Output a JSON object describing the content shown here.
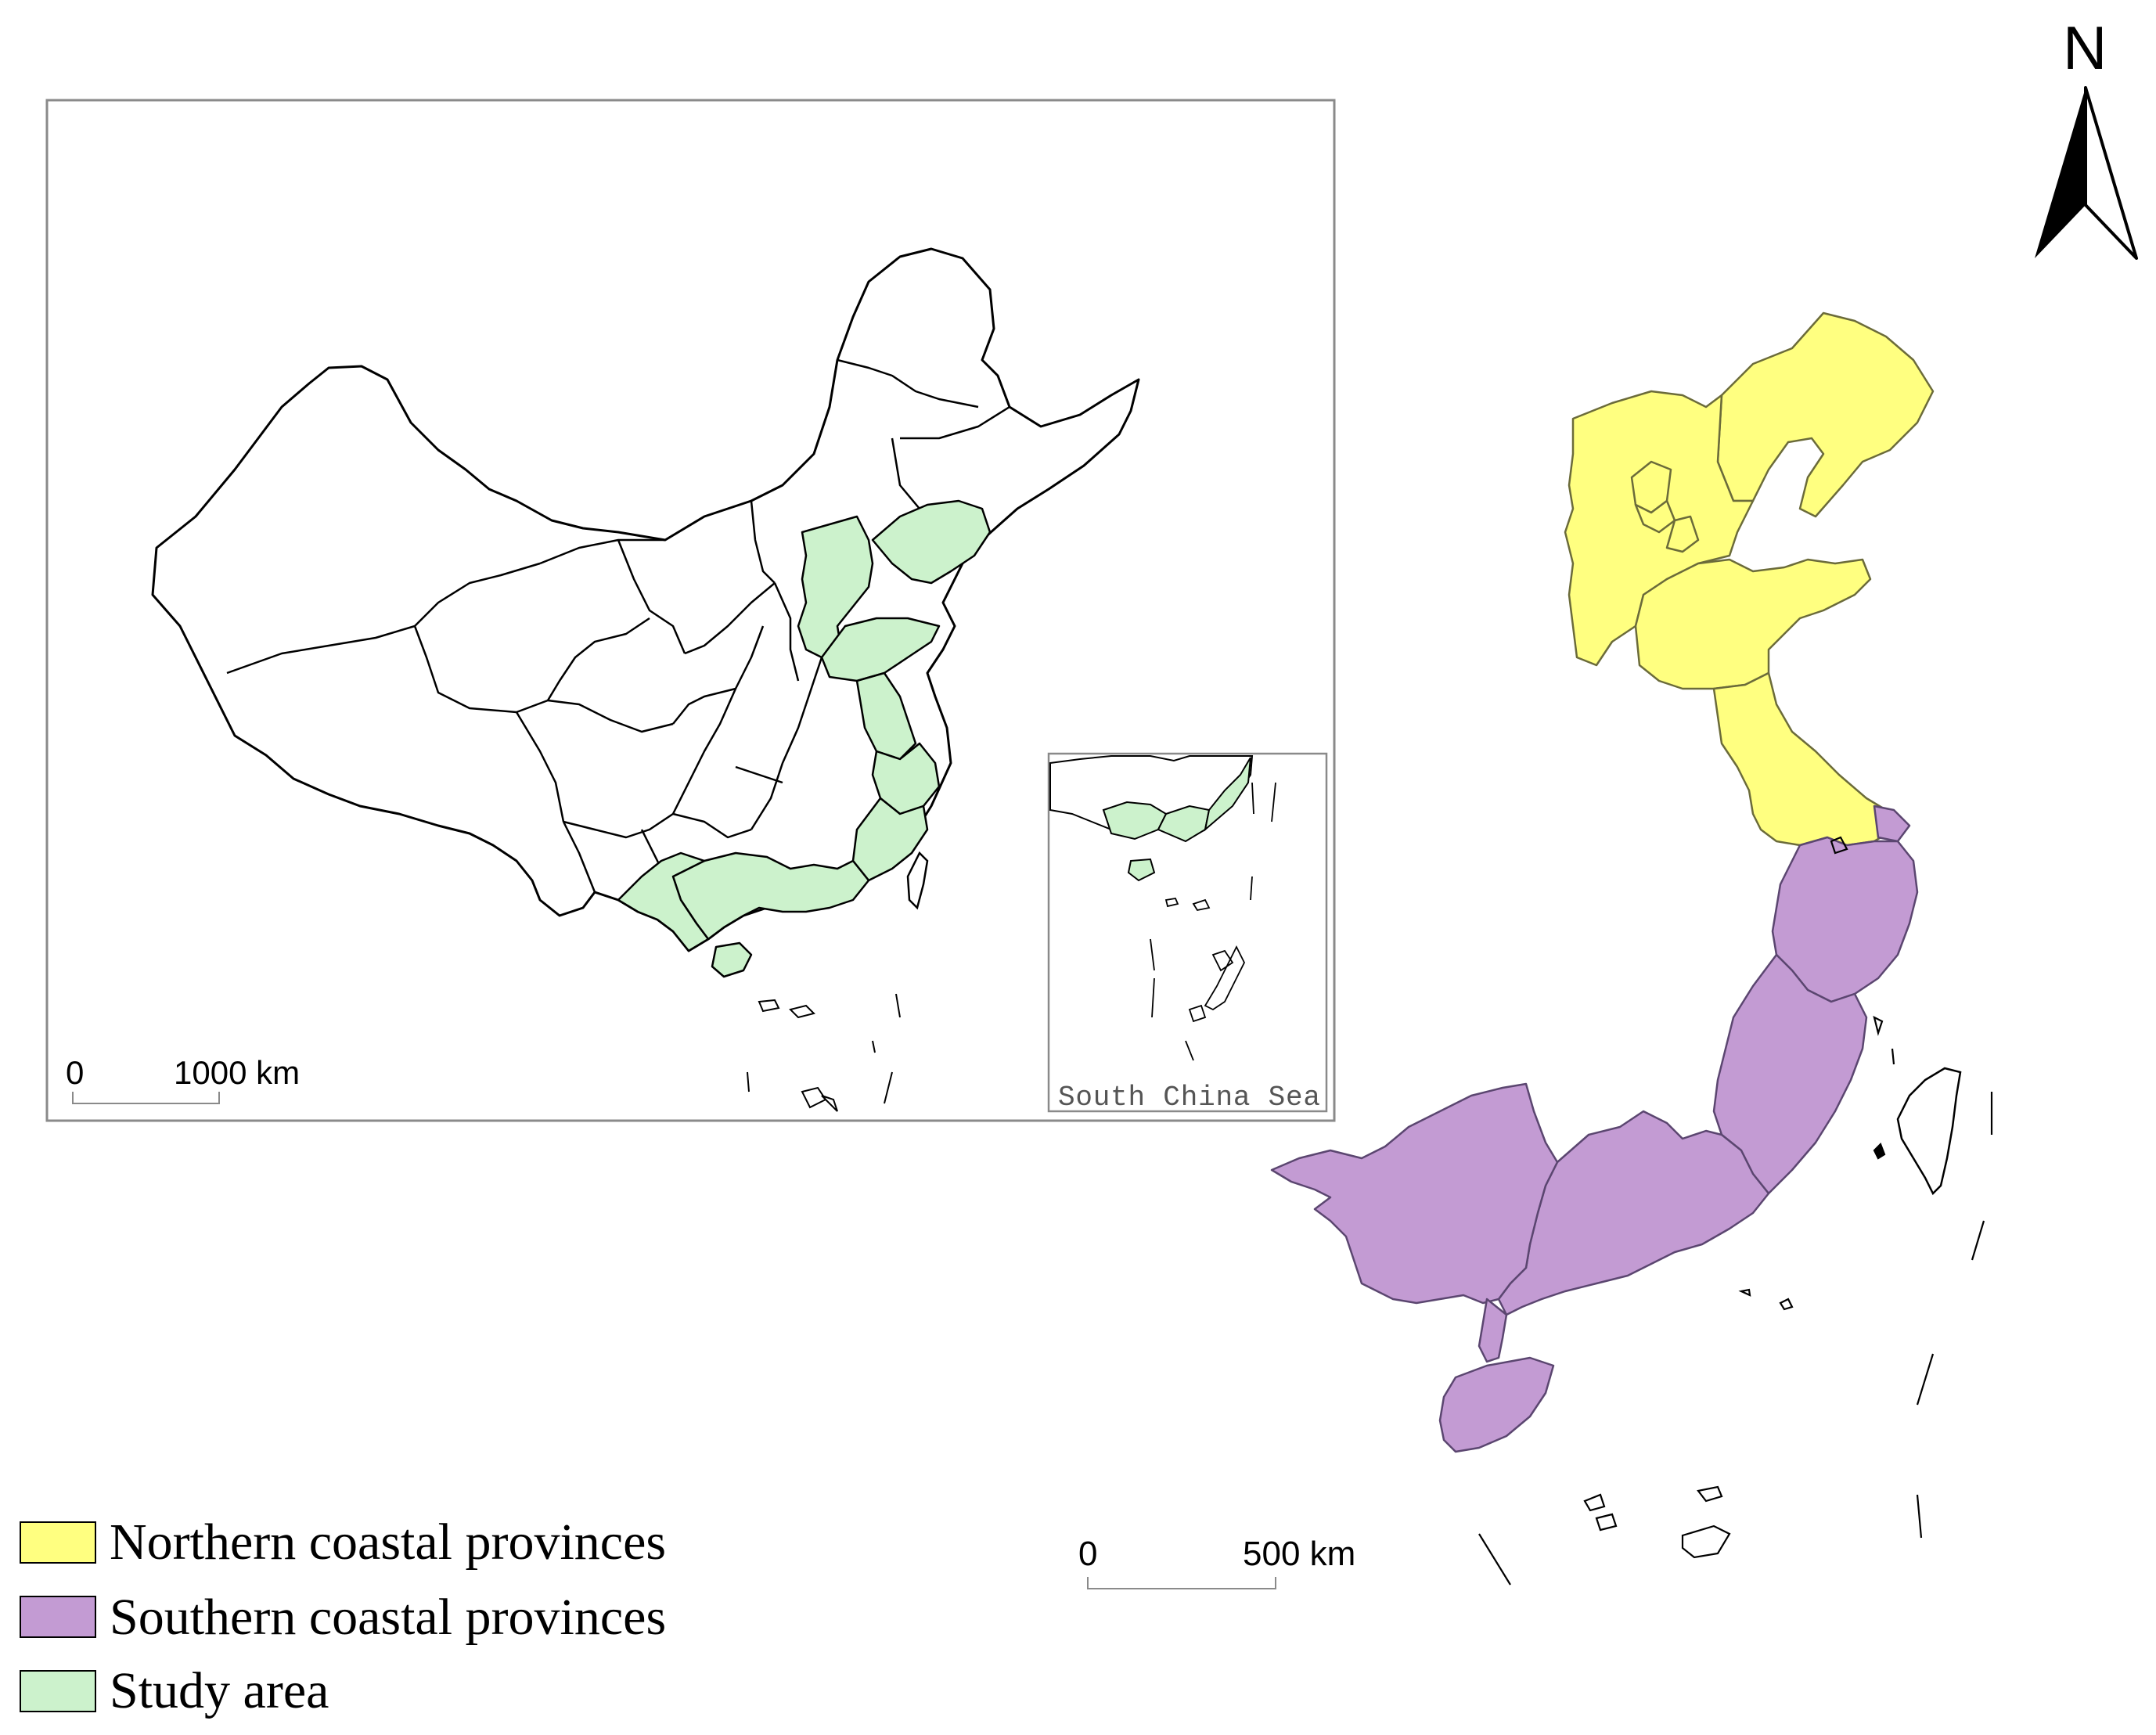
{
  "colors": {
    "northern": "#ffff80",
    "southern": "#c39bd3",
    "study": "#ccf2cc",
    "outline": "#000000",
    "frame": "#8a8a8a"
  },
  "overview_map": {
    "scale_zero": "0",
    "scale_max": "1000 km",
    "inset": {
      "label": "South China Sea"
    }
  },
  "main_map": {
    "north_label": "N",
    "north_icon": "north-arrow-icon",
    "scale_zero": "0",
    "scale_max": "500 km"
  },
  "legend": [
    {
      "label": "Northern coastal provinces",
      "color": "#ffff80"
    },
    {
      "label": "Southern coastal provinces",
      "color": "#c39bd3"
    },
    {
      "label": "Study area",
      "color": "#ccf2cc"
    }
  ]
}
